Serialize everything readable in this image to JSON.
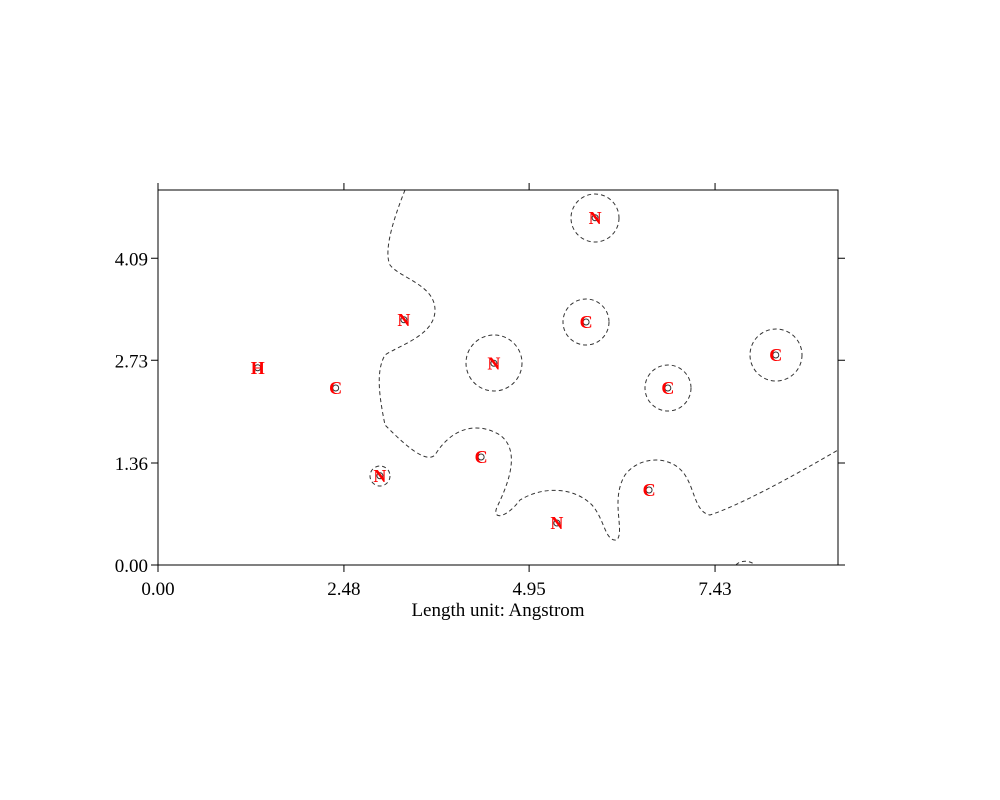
{
  "chart_data": {
    "type": "scatter",
    "x_label": "Length unit: Angstrom",
    "x": [
      1.33,
      2.37,
      3.28,
      2.96,
      4.48,
      4.31,
      5.32,
      5.71,
      5.83,
      6.8,
      6.55,
      8.24
    ],
    "values": [
      2.63,
      2.36,
      3.27,
      1.19,
      2.69,
      1.44,
      0.56,
      3.24,
      4.63,
      2.36,
      1.0,
      2.8
    ],
    "point_labels": [
      "H",
      "C",
      "N",
      "N",
      "N",
      "C",
      "N",
      "C",
      "N",
      "C",
      "C",
      "C"
    ],
    "color": "#ff0000",
    "xlim": [
      0,
      9.07
    ],
    "ylim": [
      0,
      5.0
    ],
    "xticks": [
      {
        "value": 0,
        "label": "0.00"
      },
      2.48,
      4.95,
      7.43
    ],
    "yticks": [
      {
        "value": 0,
        "label": "0.00"
      },
      1.36,
      2.73,
      4.09
    ]
  }
}
